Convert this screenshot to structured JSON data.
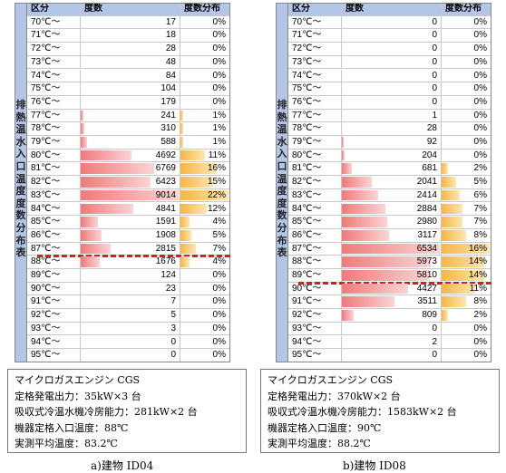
{
  "left": {
    "header": [
      "区分",
      "度数",
      "度数分布"
    ],
    "vertical_label": [
      "排",
      "熱",
      "温",
      "水",
      "入",
      "口",
      "温",
      "度",
      "度",
      "数",
      "分",
      "布",
      "表"
    ],
    "rows": [
      [
        "70℃～71℃",
        "17",
        "0%",
        0,
        0
      ],
      [
        "71℃～72℃",
        "18",
        "0%",
        0,
        0
      ],
      [
        "72℃～73℃",
        "28",
        "0%",
        0,
        0
      ],
      [
        "73℃～74℃",
        "48",
        "0%",
        0,
        0
      ],
      [
        "74℃～75℃",
        "84",
        "0%",
        0,
        0
      ],
      [
        "75℃～76℃",
        "104",
        "0%",
        0,
        0
      ],
      [
        "76℃～77℃",
        "179",
        "0%",
        0,
        0
      ],
      [
        "77℃～78℃",
        "241",
        "1%",
        0.027,
        0.05
      ],
      [
        "78℃～79℃",
        "310",
        "1%",
        0.034,
        0.05
      ],
      [
        "79℃～80℃",
        "588",
        "1%",
        0.065,
        0.05
      ],
      [
        "80℃～81℃",
        "4692",
        "11%",
        0.52,
        0.5
      ],
      [
        "81℃～82℃",
        "6769",
        "16%",
        0.75,
        0.73
      ],
      [
        "82℃～83℃",
        "6423",
        "15%",
        0.71,
        0.68
      ],
      [
        "83℃～84℃",
        "9014",
        "22%",
        1.0,
        1.0
      ],
      [
        "84℃～85℃",
        "4841",
        "12%",
        0.54,
        0.55
      ],
      [
        "85℃～86℃",
        "1591",
        "4%",
        0.18,
        0.18
      ],
      [
        "86℃～87℃",
        "1908",
        "5%",
        0.21,
        0.23
      ],
      [
        "87℃～88℃",
        "2815",
        "7%",
        0.31,
        0.32
      ],
      [
        "88℃～89℃",
        "1676",
        "4%",
        0.19,
        0.18
      ],
      [
        "89℃～90℃",
        "124",
        "0%",
        0,
        0
      ],
      [
        "90℃～91℃",
        "23",
        "0%",
        0,
        0
      ],
      [
        "91℃～92℃",
        "7",
        "0%",
        0,
        0
      ],
      [
        "92℃～93℃",
        "5",
        "0%",
        0,
        0
      ],
      [
        "93℃～94℃",
        "3",
        "0%",
        0,
        0
      ],
      [
        "94℃～95℃",
        "0",
        "0%",
        0,
        0
      ],
      [
        "95℃～",
        "0",
        "0%",
        0,
        0
      ]
    ],
    "info": [
      "マイクロガスエンジン CGS",
      "定格発電出力：35kW×3 台",
      "吸収式冷温水機冷房能力：281kW×2 台",
      "機器定格入口温度：88℃",
      "実測平均温度：83.2℃"
    ],
    "caption": "a)建物 ID04"
  },
  "right": {
    "header": [
      "区分",
      "度数",
      "度数分布"
    ],
    "vertical_label": [
      "排",
      "熱",
      "温",
      "水",
      "入",
      "口",
      "温",
      "度",
      "度",
      "数",
      "分",
      "布",
      "表"
    ],
    "rows": [
      [
        "70℃～71℃",
        "0",
        "0%",
        0,
        0
      ],
      [
        "71℃～72℃",
        "0",
        "0%",
        0,
        0
      ],
      [
        "72℃～73℃",
        "0",
        "0%",
        0,
        0
      ],
      [
        "73℃～74℃",
        "0",
        "0%",
        0,
        0
      ],
      [
        "74℃～75℃",
        "0",
        "0%",
        0,
        0
      ],
      [
        "75℃～76℃",
        "0",
        "0%",
        0,
        0
      ],
      [
        "76℃～77℃",
        "0",
        "0%",
        0,
        0
      ],
      [
        "77℃～78℃",
        "1",
        "0%",
        0,
        0
      ],
      [
        "78℃～79℃",
        "28",
        "0%",
        0,
        0
      ],
      [
        "79℃～80℃",
        "92",
        "0%",
        0.014,
        0
      ],
      [
        "80℃～81℃",
        "204",
        "0%",
        0.031,
        0
      ],
      [
        "81℃～82℃",
        "681",
        "2%",
        0.104,
        0.125
      ],
      [
        "82℃～83℃",
        "2041",
        "5%",
        0.31,
        0.31
      ],
      [
        "83℃～84℃",
        "2414",
        "6%",
        0.37,
        0.375
      ],
      [
        "84℃～85℃",
        "2884",
        "7%",
        0.44,
        0.44
      ],
      [
        "85℃～86℃",
        "2980",
        "7%",
        0.46,
        0.44
      ],
      [
        "86℃～87℃",
        "3117",
        "8%",
        0.48,
        0.5
      ],
      [
        "87℃～88℃",
        "6534",
        "16%",
        1.0,
        1.0
      ],
      [
        "88℃～89℃",
        "5973",
        "14%",
        0.91,
        0.88
      ],
      [
        "89℃～90℃",
        "5810",
        "14%",
        0.89,
        0.88
      ],
      [
        "90℃～91℃",
        "4427",
        "11%",
        0.68,
        0.69
      ],
      [
        "91℃～92℃",
        "3511",
        "8%",
        0.54,
        0.5
      ],
      [
        "92℃～93℃",
        "809",
        "2%",
        0.12,
        0.125
      ],
      [
        "93℃～94℃",
        "0",
        "0%",
        0,
        0
      ],
      [
        "94℃～95℃",
        "2",
        "0%",
        0,
        0
      ],
      [
        "95℃～",
        "0",
        "0%",
        0,
        0
      ]
    ],
    "info": [
      "マイクロガスエンジン CGS",
      "定格発電出力：370kW×2 台",
      "吸収式冷温水機冷房能力：1583kW×2 台",
      "機器定格入口温度：90℃",
      "実測平均温度：88.2℃"
    ],
    "caption": "b)建物 ID08"
  },
  "chart_data": [
    {
      "type": "table",
      "title": "a)建物 ID04",
      "columns": [
        "区分",
        "度数",
        "度数分布"
      ],
      "categories": [
        "70℃～71℃",
        "71℃～72℃",
        "72℃～73℃",
        "73℃～74℃",
        "74℃～75℃",
        "75℃～76℃",
        "76℃～77℃",
        "77℃～78℃",
        "78℃～79℃",
        "79℃～80℃",
        "80℃～81℃",
        "81℃～82℃",
        "82℃～83℃",
        "83℃～84℃",
        "84℃～85℃",
        "85℃～86℃",
        "86℃～87℃",
        "87℃～88℃",
        "88℃～89℃",
        "89℃～90℃",
        "90℃～91℃",
        "91℃～92℃",
        "92℃～93℃",
        "93℃～94℃",
        "94℃～95℃",
        "95℃～"
      ],
      "values": [
        17,
        18,
        28,
        48,
        84,
        104,
        179,
        241,
        310,
        588,
        4692,
        6769,
        6423,
        9014,
        4841,
        1591,
        1908,
        2815,
        1676,
        124,
        23,
        7,
        5,
        3,
        0,
        0
      ],
      "percent": [
        0,
        0,
        0,
        0,
        0,
        0,
        0,
        1,
        1,
        1,
        11,
        16,
        15,
        22,
        12,
        4,
        5,
        7,
        4,
        0,
        0,
        0,
        0,
        0,
        0,
        0
      ]
    },
    {
      "type": "table",
      "title": "b)建物 ID08",
      "columns": [
        "区分",
        "度数",
        "度数分布"
      ],
      "categories": [
        "70℃～71℃",
        "71℃～72℃",
        "72℃～73℃",
        "73℃～74℃",
        "74℃～75℃",
        "75℃～76℃",
        "76℃～77℃",
        "77℃～78℃",
        "78℃～79℃",
        "79℃～80℃",
        "80℃～81℃",
        "81℃～82℃",
        "82℃～83℃",
        "83℃～84℃",
        "84℃～85℃",
        "85℃～86℃",
        "86℃～87℃",
        "87℃～88℃",
        "88℃～89℃",
        "89℃～90℃",
        "90℃～91℃",
        "91℃～92℃",
        "92℃～93℃",
        "93℃～94℃",
        "94℃～95℃",
        "95℃～"
      ],
      "values": [
        0,
        0,
        0,
        0,
        0,
        0,
        0,
        1,
        28,
        92,
        204,
        681,
        2041,
        2414,
        2884,
        2980,
        3117,
        6534,
        5973,
        5810,
        4427,
        3511,
        809,
        0,
        2,
        0
      ],
      "percent": [
        0,
        0,
        0,
        0,
        0,
        0,
        0,
        0,
        0,
        0,
        0,
        2,
        5,
        6,
        7,
        7,
        8,
        16,
        14,
        14,
        11,
        8,
        2,
        0,
        0,
        0
      ]
    }
  ]
}
